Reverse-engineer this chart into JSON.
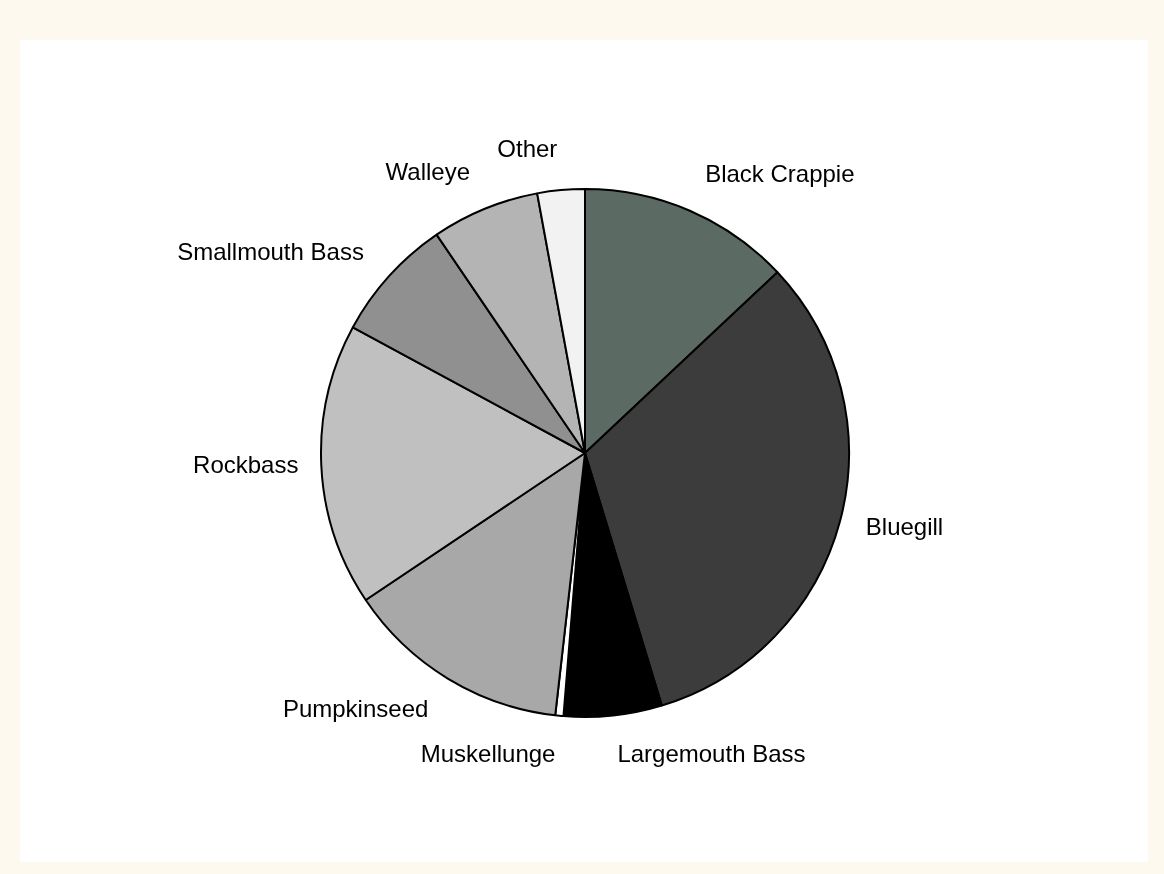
{
  "chart_data": {
    "type": "pie",
    "categories": [
      "Black Crappie",
      "Bluegill",
      "Largemouth Bass",
      "Muskellunge",
      "Pumpkinseed",
      "Rockbass",
      "Smallmouth Bass",
      "Walleye",
      "Other"
    ],
    "values": [
      13,
      32.3,
      6,
      0.5,
      13.8,
      17.3,
      7.6,
      6.6,
      2.9
    ],
    "colors": [
      "#5b6a62",
      "#3c3c3c",
      "#000000",
      "#ffffff",
      "#a8a8a8",
      "#c0c0c0",
      "#909090",
      "#b4b4b4",
      "#f2f2f2"
    ],
    "legend": false
  }
}
